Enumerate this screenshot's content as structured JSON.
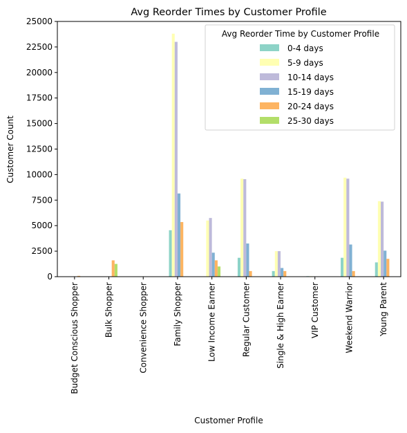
{
  "chart_data": {
    "type": "bar",
    "title": "Avg Reorder Times by Customer Profile",
    "xlabel": "Customer Profile",
    "ylabel": "Customer Count",
    "ylim": [
      0,
      25000
    ],
    "yticks": [
      0,
      2500,
      5000,
      7500,
      10000,
      12500,
      15000,
      17500,
      20000,
      22500,
      25000
    ],
    "grid": false,
    "legend": {
      "title": "Avg Reorder Time by Customer Profile",
      "placement": "top-right"
    },
    "categories": [
      "Budget Conscious Shopper",
      "Bulk Shopper",
      "Convenience Shopper",
      "Family Shopper",
      "Low Income Earner",
      "Regular Customer",
      "Single & High Earner",
      "VIP Customer",
      "Weekend Warrior",
      "Young Parent"
    ],
    "series": [
      {
        "name": "0-4 days",
        "color": "#8dd3c7",
        "values": [
          0,
          0,
          0,
          4550,
          0,
          1850,
          550,
          50,
          1850,
          1400
        ]
      },
      {
        "name": "5-9 days",
        "color": "#ffffb3",
        "values": [
          30,
          0,
          20,
          23800,
          5500,
          9600,
          2500,
          50,
          9700,
          7400
        ]
      },
      {
        "name": "10-14 days",
        "color": "#bebada",
        "values": [
          30,
          0,
          20,
          23000,
          5750,
          9550,
          2500,
          30,
          9600,
          7350
        ]
      },
      {
        "name": "15-19 days",
        "color": "#80b1d3",
        "values": [
          0,
          0,
          0,
          8150,
          2350,
          3250,
          850,
          0,
          3150,
          2550
        ]
      },
      {
        "name": "20-24 days",
        "color": "#fdb462",
        "values": [
          80,
          1600,
          0,
          5350,
          1600,
          550,
          550,
          0,
          550,
          1750
        ]
      },
      {
        "name": "25-30 days",
        "color": "#b3de69",
        "values": [
          0,
          1250,
          0,
          0,
          1000,
          0,
          0,
          0,
          0,
          0
        ]
      }
    ]
  }
}
